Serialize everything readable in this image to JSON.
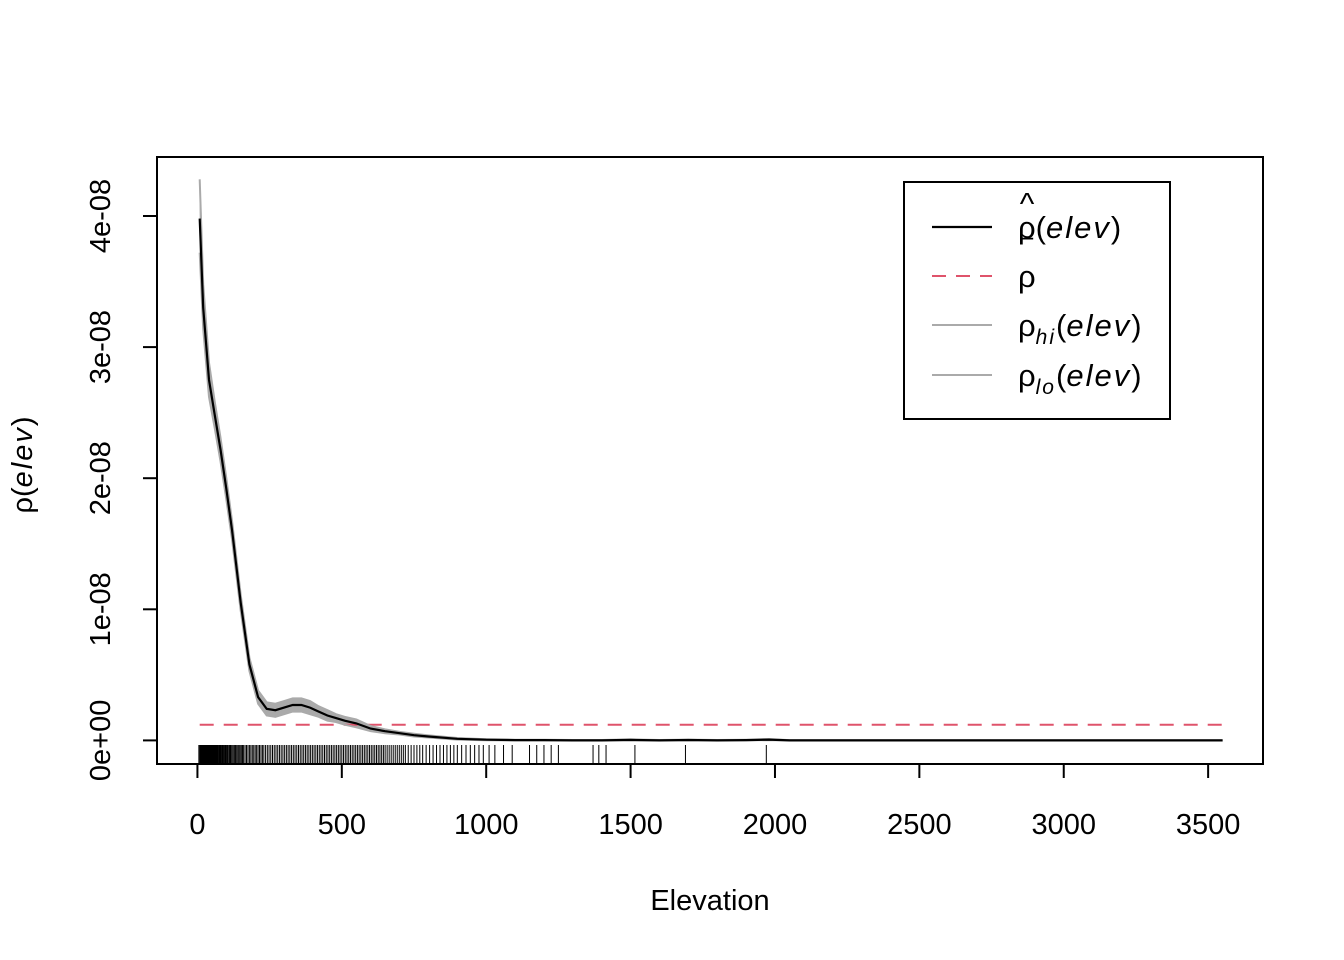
{
  "chart_data": {
    "type": "line",
    "title": "",
    "xlabel": "Elevation",
    "ylabel": {
      "greek": "ρ",
      "open": "(",
      "var": "elev",
      "close": ")"
    },
    "xlim": [
      -140,
      3690
    ],
    "ylim": [
      -1.8e-09,
      4.45e-08
    ],
    "x_ticks": [
      0,
      500,
      1000,
      1500,
      2000,
      2500,
      3000,
      3500
    ],
    "x_tick_labels": [
      "0",
      "500",
      "1000",
      "1500",
      "2000",
      "2500",
      "3000",
      "3500"
    ],
    "y_ticks": [
      0,
      1e-08,
      2e-08,
      3e-08,
      4e-08
    ],
    "y_tick_labels": [
      "0e+00",
      "1e-08",
      "2e-08",
      "3e-08",
      "4e-08"
    ],
    "grid": false,
    "legend_position": "top-right",
    "series": [
      {
        "key": "rho_hat",
        "color": "#000000",
        "style": "solid",
        "x": [
          8,
          20,
          40,
          60,
          80,
          100,
          120,
          150,
          180,
          210,
          240,
          270,
          300,
          330,
          360,
          390,
          420,
          450,
          480,
          510,
          550,
          600,
          650,
          700,
          750,
          800,
          900,
          1000,
          1100,
          1200,
          1300,
          1400,
          1500,
          1600,
          1700,
          1800,
          1900,
          1980,
          2050,
          2200,
          2500,
          3000,
          3550
        ],
        "y": [
          3.98e-08,
          3.3e-08,
          2.75e-08,
          2.48e-08,
          2.22e-08,
          1.92e-08,
          1.6e-08,
          1.05e-08,
          5.8e-09,
          3.3e-09,
          2.4e-09,
          2.3e-09,
          2.5e-09,
          2.7e-09,
          2.7e-09,
          2.5e-09,
          2.2e-09,
          1.9e-09,
          1.7e-09,
          1.5e-09,
          1.3e-09,
          9e-10,
          7e-10,
          5.5e-10,
          4e-10,
          3e-10,
          1.2e-10,
          5e-11,
          2e-11,
          2e-11,
          0.0,
          0.0,
          4e-11,
          0.0,
          3e-11,
          0.0,
          2e-11,
          6e-11,
          0.0,
          0.0,
          0.0,
          0.0,
          0.0
        ]
      },
      {
        "key": "rho_hi",
        "color": "#aaaaaa",
        "style": "solid",
        "x": [
          8,
          20,
          40,
          60,
          80,
          100,
          120,
          150,
          180,
          210,
          240,
          270,
          300,
          330,
          360,
          390,
          420,
          450,
          480,
          510,
          550,
          600,
          650,
          700,
          750,
          800,
          900,
          1000,
          1100,
          1200,
          1300,
          1400,
          1500,
          1600,
          1700,
          1800,
          1900,
          1980,
          2050,
          2200,
          2500,
          3000,
          3550
        ],
        "y": [
          4.28e-08,
          3.48e-08,
          2.88e-08,
          2.58e-08,
          2.31e-08,
          2e-08,
          1.67e-08,
          1.11e-08,
          6.3e-09,
          3.8e-09,
          2.9e-09,
          2.8e-09,
          3e-09,
          3.2e-09,
          3.2e-09,
          3e-09,
          2.6e-09,
          2.3e-09,
          2e-09,
          1.8e-09,
          1.6e-09,
          1.1e-09,
          8.5e-10,
          6.5e-10,
          5e-10,
          3.8e-10,
          1.8e-10,
          9e-11,
          5e-11,
          5e-11,
          3e-11,
          3e-11,
          8e-11,
          3e-11,
          6e-11,
          3e-11,
          5e-11,
          1e-10,
          2e-11,
          1e-11,
          5e-12,
          0.0,
          0.0
        ]
      },
      {
        "key": "rho_lo",
        "color": "#aaaaaa",
        "style": "solid",
        "x": [
          8,
          20,
          40,
          60,
          80,
          100,
          120,
          150,
          180,
          210,
          240,
          270,
          300,
          330,
          360,
          390,
          420,
          450,
          480,
          510,
          550,
          600,
          650,
          700,
          750,
          800,
          900,
          1000,
          1100,
          1200,
          1300,
          1400,
          1500,
          1600,
          1700,
          1800,
          1900,
          1980,
          2050,
          2200,
          2500,
          3000,
          3550
        ],
        "y": [
          3.72e-08,
          3.14e-08,
          2.62e-08,
          2.38e-08,
          2.13e-08,
          1.84e-08,
          1.53e-08,
          9.9e-09,
          5.3e-09,
          2.8e-09,
          1.9e-09,
          1.8e-09,
          2e-09,
          2.2e-09,
          2.2e-09,
          2e-09,
          1.8e-09,
          1.5e-09,
          1.4e-09,
          1.2e-09,
          1e-09,
          7e-10,
          5.5e-10,
          4.5e-10,
          3e-10,
          2.2e-10,
          6e-11,
          1e-11,
          0.0,
          0.0,
          0.0,
          0.0,
          0.0,
          0.0,
          0.0,
          0.0,
          0.0,
          2e-11,
          0.0,
          0.0,
          0.0,
          0.0,
          0.0
        ]
      },
      {
        "key": "rho_bar",
        "color": "#df536b",
        "style": "dashed",
        "x": [
          8,
          3550
        ],
        "y": [
          1.2e-09,
          1.2e-09
        ]
      }
    ],
    "rug": {
      "y_top": -3.5e-10,
      "y_bottom": -1.8e-09,
      "x": [
        5,
        8,
        10,
        12,
        14,
        16,
        18,
        20,
        22,
        24,
        26,
        28,
        30,
        32,
        34,
        36,
        38,
        40,
        42,
        44,
        46,
        48,
        50,
        52,
        54,
        56,
        58,
        60,
        62,
        64,
        66,
        68,
        70,
        72,
        75,
        78,
        80,
        83,
        86,
        88,
        90,
        93,
        96,
        98,
        100,
        103,
        106,
        110,
        113,
        116,
        120,
        124,
        128,
        132,
        136,
        140,
        144,
        148,
        152,
        156,
        160,
        165,
        170,
        175,
        180,
        185,
        190,
        195,
        200,
        205,
        210,
        215,
        220,
        225,
        230,
        236,
        242,
        248,
        254,
        260,
        266,
        272,
        278,
        284,
        290,
        296,
        302,
        308,
        314,
        320,
        326,
        332,
        338,
        344,
        350,
        356,
        362,
        368,
        374,
        380,
        386,
        392,
        398,
        404,
        410,
        416,
        422,
        428,
        434,
        440,
        446,
        452,
        458,
        464,
        470,
        476,
        482,
        488,
        494,
        500,
        506,
        512,
        518,
        524,
        530,
        536,
        542,
        548,
        554,
        560,
        566,
        572,
        578,
        584,
        590,
        596,
        602,
        608,
        614,
        620,
        626,
        632,
        638,
        644,
        650,
        657,
        664,
        671,
        678,
        685,
        692,
        699,
        706,
        713,
        720,
        730,
        740,
        750,
        760,
        770,
        780,
        792,
        804,
        816,
        828,
        840,
        852,
        864,
        876,
        888,
        900,
        915,
        930,
        945,
        960,
        975,
        990,
        1010,
        1030,
        1060,
        1090,
        1150,
        1175,
        1200,
        1225,
        1250,
        1370,
        1390,
        1415,
        1515,
        1690,
        1970
      ]
    },
    "legend": [
      {
        "series": "rho_hat",
        "greek": "ρ",
        "hat": "^",
        "sub": "",
        "open": "(",
        "var": "elev",
        "close": ")"
      },
      {
        "series": "rho_bar",
        "greek": "ρ",
        "bar": "‾",
        "sub": "",
        "open": "",
        "var": "",
        "close": ""
      },
      {
        "series": "rho_hi",
        "greek": "ρ",
        "sub": "hi",
        "open": "(",
        "var": "elev",
        "close": ")"
      },
      {
        "series": "rho_lo",
        "greek": "ρ",
        "sub": "lo",
        "open": "(",
        "var": "elev",
        "close": ")"
      }
    ]
  }
}
